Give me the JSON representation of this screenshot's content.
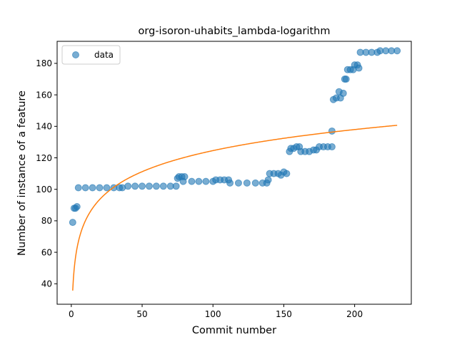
{
  "chart_data": {
    "type": "scatter",
    "title": "org-isoron-uhabits_lambda-logarithm",
    "xlabel": "Commit number",
    "ylabel": "Number of instance of a feature",
    "xlim": [
      -10,
      240
    ],
    "ylim": [
      27,
      194
    ],
    "xticks": [
      0,
      50,
      100,
      150,
      200
    ],
    "yticks": [
      40,
      60,
      80,
      100,
      120,
      140,
      160,
      180
    ],
    "grid": false,
    "legend": {
      "position": "top-left",
      "entries": [
        "data"
      ]
    },
    "colors": {
      "data": "#1f77b4",
      "fit": "#ff7f0e"
    },
    "series": [
      {
        "name": "data",
        "kind": "scatter",
        "points": [
          [
            1,
            79
          ],
          [
            2,
            88
          ],
          [
            3,
            88
          ],
          [
            4,
            89
          ],
          [
            5,
            101
          ],
          [
            10,
            101
          ],
          [
            15,
            101
          ],
          [
            20,
            101
          ],
          [
            25,
            101
          ],
          [
            30,
            101
          ],
          [
            34,
            101
          ],
          [
            36,
            101
          ],
          [
            40,
            102
          ],
          [
            45,
            102
          ],
          [
            50,
            102
          ],
          [
            55,
            102
          ],
          [
            60,
            102
          ],
          [
            65,
            102
          ],
          [
            70,
            102
          ],
          [
            74,
            102
          ],
          [
            75,
            107
          ],
          [
            76,
            108
          ],
          [
            78,
            108
          ],
          [
            80,
            108
          ],
          [
            79,
            105
          ],
          [
            85,
            105
          ],
          [
            90,
            105
          ],
          [
            95,
            105
          ],
          [
            100,
            105
          ],
          [
            102,
            106
          ],
          [
            105,
            106
          ],
          [
            108,
            106
          ],
          [
            111,
            106
          ],
          [
            112,
            104
          ],
          [
            118,
            104
          ],
          [
            124,
            104
          ],
          [
            130,
            104
          ],
          [
            135,
            104
          ],
          [
            138,
            104
          ],
          [
            139,
            106
          ],
          [
            140,
            110
          ],
          [
            143,
            110
          ],
          [
            146,
            110
          ],
          [
            148,
            109
          ],
          [
            150,
            111
          ],
          [
            152,
            110
          ],
          [
            154,
            124
          ],
          [
            155,
            126
          ],
          [
            157,
            126
          ],
          [
            159,
            127
          ],
          [
            161,
            127
          ],
          [
            162,
            124
          ],
          [
            165,
            124
          ],
          [
            168,
            124
          ],
          [
            171,
            125
          ],
          [
            173,
            125
          ],
          [
            175,
            127
          ],
          [
            178,
            127
          ],
          [
            181,
            127
          ],
          [
            184,
            127
          ],
          [
            184,
            137
          ],
          [
            185,
            157
          ],
          [
            187,
            158
          ],
          [
            189,
            162
          ],
          [
            190,
            158
          ],
          [
            192,
            161
          ],
          [
            193,
            170
          ],
          [
            194,
            170
          ],
          [
            195,
            176
          ],
          [
            197,
            176
          ],
          [
            199,
            176
          ],
          [
            200,
            179
          ],
          [
            202,
            179
          ],
          [
            203,
            177
          ],
          [
            204,
            187
          ],
          [
            208,
            187
          ],
          [
            212,
            187
          ],
          [
            216,
            187
          ],
          [
            218,
            188
          ],
          [
            222,
            188
          ],
          [
            226,
            188
          ],
          [
            230,
            188
          ]
        ]
      },
      {
        "name": "",
        "kind": "line",
        "model": "a + b*ln(x)",
        "params": {
          "a": 35.7,
          "b": 19.3
        },
        "x_range": [
          1,
          230
        ]
      }
    ]
  }
}
